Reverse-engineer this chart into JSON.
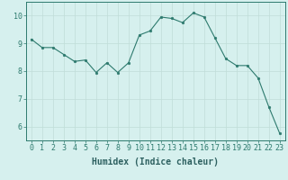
{
  "x": [
    0,
    1,
    2,
    3,
    4,
    5,
    6,
    7,
    8,
    9,
    10,
    11,
    12,
    13,
    14,
    15,
    16,
    17,
    18,
    19,
    20,
    21,
    22,
    23
  ],
  "y": [
    9.15,
    8.85,
    8.85,
    8.6,
    8.35,
    8.4,
    7.95,
    8.3,
    7.95,
    8.3,
    9.3,
    9.45,
    9.95,
    9.9,
    9.75,
    10.1,
    9.95,
    9.2,
    8.45,
    8.2,
    8.2,
    7.75,
    6.7,
    5.75
  ],
  "line_color": "#2d7a6e",
  "marker_color": "#2d7a6e",
  "bg_color": "#d6f0ee",
  "grid_color": "#c0ddd8",
  "axis_color": "#2d7a6e",
  "xlabel": "Humidex (Indice chaleur)",
  "ylim": [
    5.5,
    10.5
  ],
  "xlim": [
    -0.5,
    23.5
  ],
  "yticks": [
    6,
    7,
    8,
    9,
    10
  ],
  "xticks": [
    0,
    1,
    2,
    3,
    4,
    5,
    6,
    7,
    8,
    9,
    10,
    11,
    12,
    13,
    14,
    15,
    16,
    17,
    18,
    19,
    20,
    21,
    22,
    23
  ],
  "font_color": "#2d6060",
  "tick_fontsize": 6,
  "label_fontsize": 7
}
